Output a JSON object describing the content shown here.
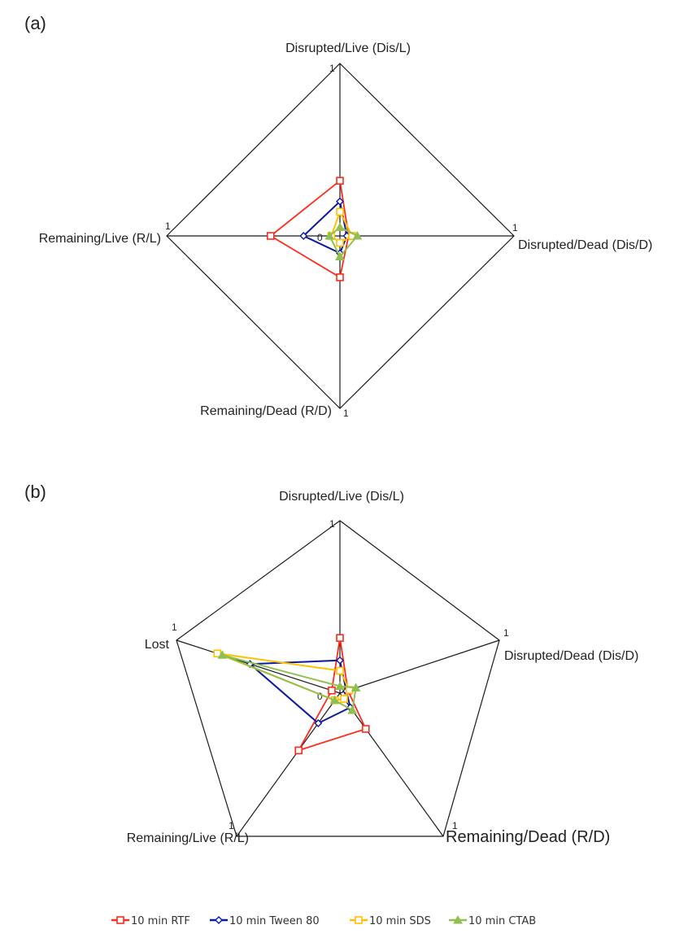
{
  "colors": {
    "rtf": "#ff2a1a",
    "tween": "#0a1aa0",
    "sds": "#ffc000",
    "ctab": "#92c050"
  },
  "legend": [
    {
      "label": "10 min RTF",
      "color": "#ff2a1a",
      "marker": "square"
    },
    {
      "label": "10 min Tween 80",
      "color": "#0a1aa0",
      "marker": "diamond"
    },
    {
      "label": "10 min SDS",
      "color": "#ffc000",
      "marker": "square"
    },
    {
      "label": "10 min CTAB",
      "color": "#92c050",
      "marker": "triangle"
    }
  ],
  "chart_data": [
    {
      "panel": "(a)",
      "type": "radar",
      "axes": [
        "Disrupted/Live (Dis/L)",
        "Disrupted/Dead (Dis/D)",
        "Remaining/Dead (R/D)",
        "Remaining/Live (R/L)"
      ],
      "max_label": "1",
      "center_label": "0",
      "range": [
        0,
        1
      ],
      "series": [
        {
          "name": "10 min RTF",
          "values": [
            0.32,
            0.05,
            0.24,
            0.4
          ]
        },
        {
          "name": "10 min Tween 80",
          "values": [
            0.2,
            0.04,
            0.1,
            0.21
          ]
        },
        {
          "name": "10 min SDS",
          "values": [
            0.14,
            0.07,
            0.04,
            0.05
          ]
        },
        {
          "name": "10 min CTAB",
          "values": [
            0.05,
            0.1,
            0.12,
            0.06
          ]
        }
      ]
    },
    {
      "panel": "(b)",
      "type": "radar",
      "axes": [
        "Disrupted/Live (Dis/L)",
        "Disrupted/Dead (Dis/D)",
        "Remaining/Dead (R/D)",
        "Remaining/Live (R/L)",
        "Lost"
      ],
      "max_label": "1",
      "center_label": "0",
      "range": [
        0,
        1
      ],
      "series": [
        {
          "name": "10 min RTF",
          "values": [
            0.32,
            0.05,
            0.25,
            0.4,
            0.05
          ]
        },
        {
          "name": "10 min Tween 80",
          "values": [
            0.19,
            0.04,
            0.1,
            0.21,
            0.55
          ]
        },
        {
          "name": "10 min SDS",
          "values": [
            0.13,
            0.06,
            0.04,
            0.05,
            0.75
          ]
        },
        {
          "name": "10 min CTAB",
          "values": [
            0.04,
            0.1,
            0.12,
            0.05,
            0.72
          ]
        }
      ]
    }
  ]
}
